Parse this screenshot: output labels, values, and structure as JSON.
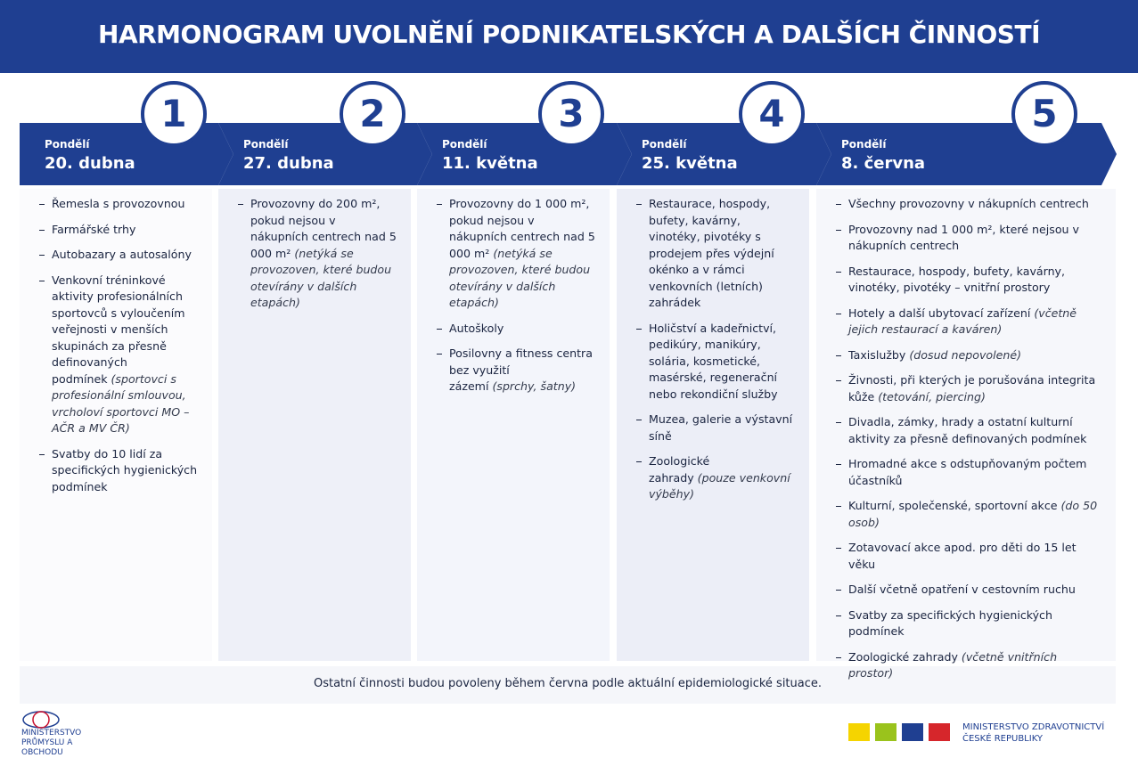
{
  "header": {
    "title": "HARMONOGRAM UVOLNĚNÍ PODNIKATELSKÝCH A DALŠÍCH ČINNOSTÍ"
  },
  "stages": [
    {
      "number": 1,
      "day": "Pondělí",
      "date": "20. dubna",
      "items": [
        {
          "text": "Řemesla s provozovnou"
        },
        {
          "text": "Farmářské trhy"
        },
        {
          "text": "Autobazary a autosalóny"
        },
        {
          "text": "Venkovní tréninkové aktivity profesionálních sportovců s vyloučením veřejnosti v menších skupinách za přesně definovaných podmínek",
          "note": "(sportovci s profesionální smlouvou, vrcholoví sportovci MO – AČR a MV ČR)"
        },
        {
          "text": "Svatby do 10 lidí za specifických hygienických podmínek"
        }
      ]
    },
    {
      "number": 2,
      "day": "Pondělí",
      "date": "27. dubna",
      "items": [
        {
          "text": "Provozovny do 200 m², pokud nejsou v nákupních centrech nad 5 000 m²",
          "note": "(netýká se provozoven, které budou otevírány v dalších etapách)"
        }
      ]
    },
    {
      "number": 3,
      "day": "Pondělí",
      "date": "11. května",
      "items": [
        {
          "text": "Provozovny do 1 000 m², pokud nejsou v nákupních centrech nad 5 000 m²",
          "note": "(netýká se provozoven, které budou otevírány v dalších etapách)"
        },
        {
          "text": "Autoškoly"
        },
        {
          "text": "Posilovny a fitness centra bez využití zázemí",
          "note": "(sprchy, šatny)"
        }
      ]
    },
    {
      "number": 4,
      "day": "Pondělí",
      "date": "25. května",
      "items": [
        {
          "text": "Restaurace, hospody, bufety, kavárny, vinotéky, pivotéky s prodejem přes výdejní okénko a v rámci venkovních (letních) zahrádek"
        },
        {
          "text": "Holičství a kadeřnictví, pedikúry, manikúry, solária, kosmetické, masérské, regenerační nebo rekondiční služby"
        },
        {
          "text": "Muzea, galerie a výstavní síně"
        },
        {
          "text": "Zoologické zahrady",
          "note": "(pouze venkovní výběhy)"
        }
      ]
    },
    {
      "number": 5,
      "day": "Pondělí",
      "date": "8. června",
      "items": [
        {
          "text": "Všechny provozovny v nákupních centrech"
        },
        {
          "text": "Provozovny nad 1 000 m², které nejsou v nákupních centrech"
        },
        {
          "text": "Restaurace, hospody, bufety, kavárny, vinotéky, pivotéky – vnitřní prostory"
        },
        {
          "text": "Hotely a další ubytovací zařízení",
          "note": "(včetně jejich restaurací a kaváren)"
        },
        {
          "text": "Taxislužby",
          "note": "(dosud nepovolené)"
        },
        {
          "text": "Živnosti, při kterých je porušována integrita kůže",
          "note": "(tetování, piercing)"
        },
        {
          "text": "Divadla, zámky, hrady a ostatní kulturní aktivity za přesně definovaných podmínek"
        },
        {
          "text": "Hromadné akce s odstupňovaným počtem účastníků"
        },
        {
          "text": "Kulturní, společenské, sportovní akce",
          "note": "(do 50 osob)"
        },
        {
          "text": "Zotavovací akce apod. pro děti do 15 let věku"
        },
        {
          "text": "Další včetně opatření v cestovním ruchu"
        },
        {
          "text": "Svatby za specifických hygienických podmínek"
        },
        {
          "text": "Zoologické zahrady",
          "note": "(včetně vnitřních prostor)"
        }
      ]
    }
  ],
  "footer": {
    "note": "Ostatní činnosti budou povoleny během června podle aktuální epidemiologické situace.",
    "logo_left": "MINISTERSTVO PRŮMYSLU A OBCHODU",
    "logo_right": "MINISTERSTVO ZDRAVOTNICTVÍ ČESKÉ REPUBLIKY"
  }
}
